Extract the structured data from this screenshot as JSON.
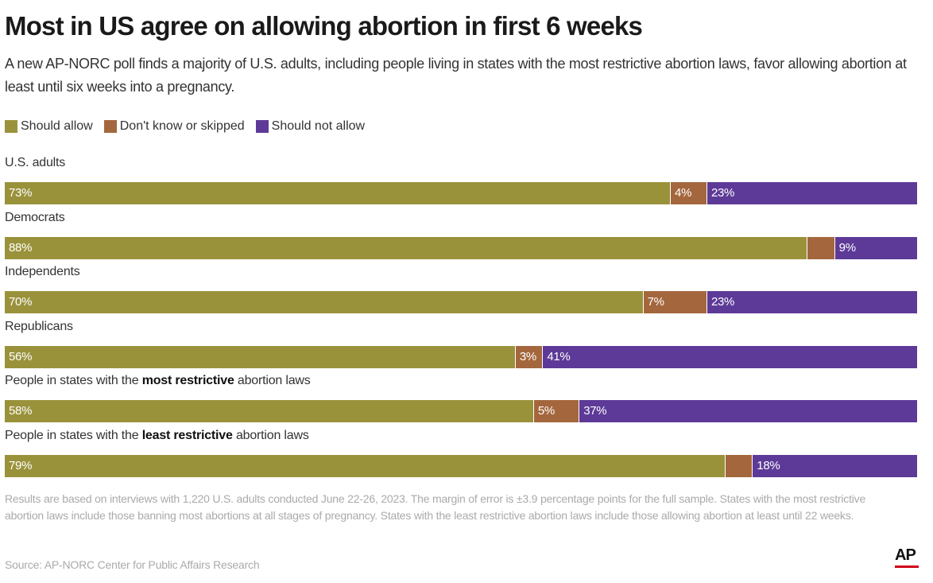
{
  "title": "Most in US agree on allowing abortion in first 6 weeks",
  "subtitle": "A new AP-NORC poll finds a majority of U.S. adults, including people living in states with the most restrictive abortion laws, favor allowing abortion at least until six weeks into a pregnancy.",
  "colors": {
    "allow": "#9a923b",
    "dontknow": "#a4673d",
    "notallow": "#5d3a97"
  },
  "chart_data": {
    "type": "bar",
    "orientation": "horizontal",
    "stacked": true,
    "percent": true,
    "legend": [
      "Should allow",
      "Don't know or skipped",
      "Should not allow"
    ],
    "categories": [
      "U.S. adults",
      "Democrats",
      "Independents",
      "Republicans",
      "People in states with the most restrictive abortion laws",
      "People in states with the least restrictive abortion laws"
    ],
    "series": [
      {
        "name": "Should allow",
        "values": [
          73,
          88,
          70,
          56,
          58,
          79
        ]
      },
      {
        "name": "Don't know or skipped",
        "values": [
          4,
          3,
          7,
          3,
          5,
          3
        ]
      },
      {
        "name": "Should not allow",
        "values": [
          23,
          9,
          23,
          41,
          37,
          18
        ]
      }
    ],
    "data_labels": [
      [
        "73%",
        "4%",
        "23%"
      ],
      [
        "88%",
        "",
        "9%"
      ],
      [
        "70%",
        "7%",
        "23%"
      ],
      [
        "56%",
        "3%",
        "41%"
      ],
      [
        "58%",
        "5%",
        "37%"
      ],
      [
        "79%",
        "",
        "18%"
      ]
    ],
    "row_labels": [
      {
        "before": "U.S. adults",
        "bold": "",
        "after": ""
      },
      {
        "before": "Democrats",
        "bold": "",
        "after": ""
      },
      {
        "before": "Independents",
        "bold": "",
        "after": ""
      },
      {
        "before": "Republicans",
        "bold": "",
        "after": ""
      },
      {
        "before": "People in states with the ",
        "bold": "most restrictive",
        "after": " abortion laws"
      },
      {
        "before": "People in states with the ",
        "bold": "least restrictive",
        "after": " abortion laws"
      }
    ]
  },
  "note": "Results are based on interviews with 1,220 U.S. adults conducted June 22-26, 2023. The margin of error is ±3.9 percentage points for the full sample. States with the most restrictive abortion laws include those banning most abortions at all stages of pregnancy. States with the least restrictive abortion laws include those allowing abortion at least until 22 weeks.",
  "source": "Source: AP-NORC Center for Public Affairs Research",
  "logo": "AP"
}
